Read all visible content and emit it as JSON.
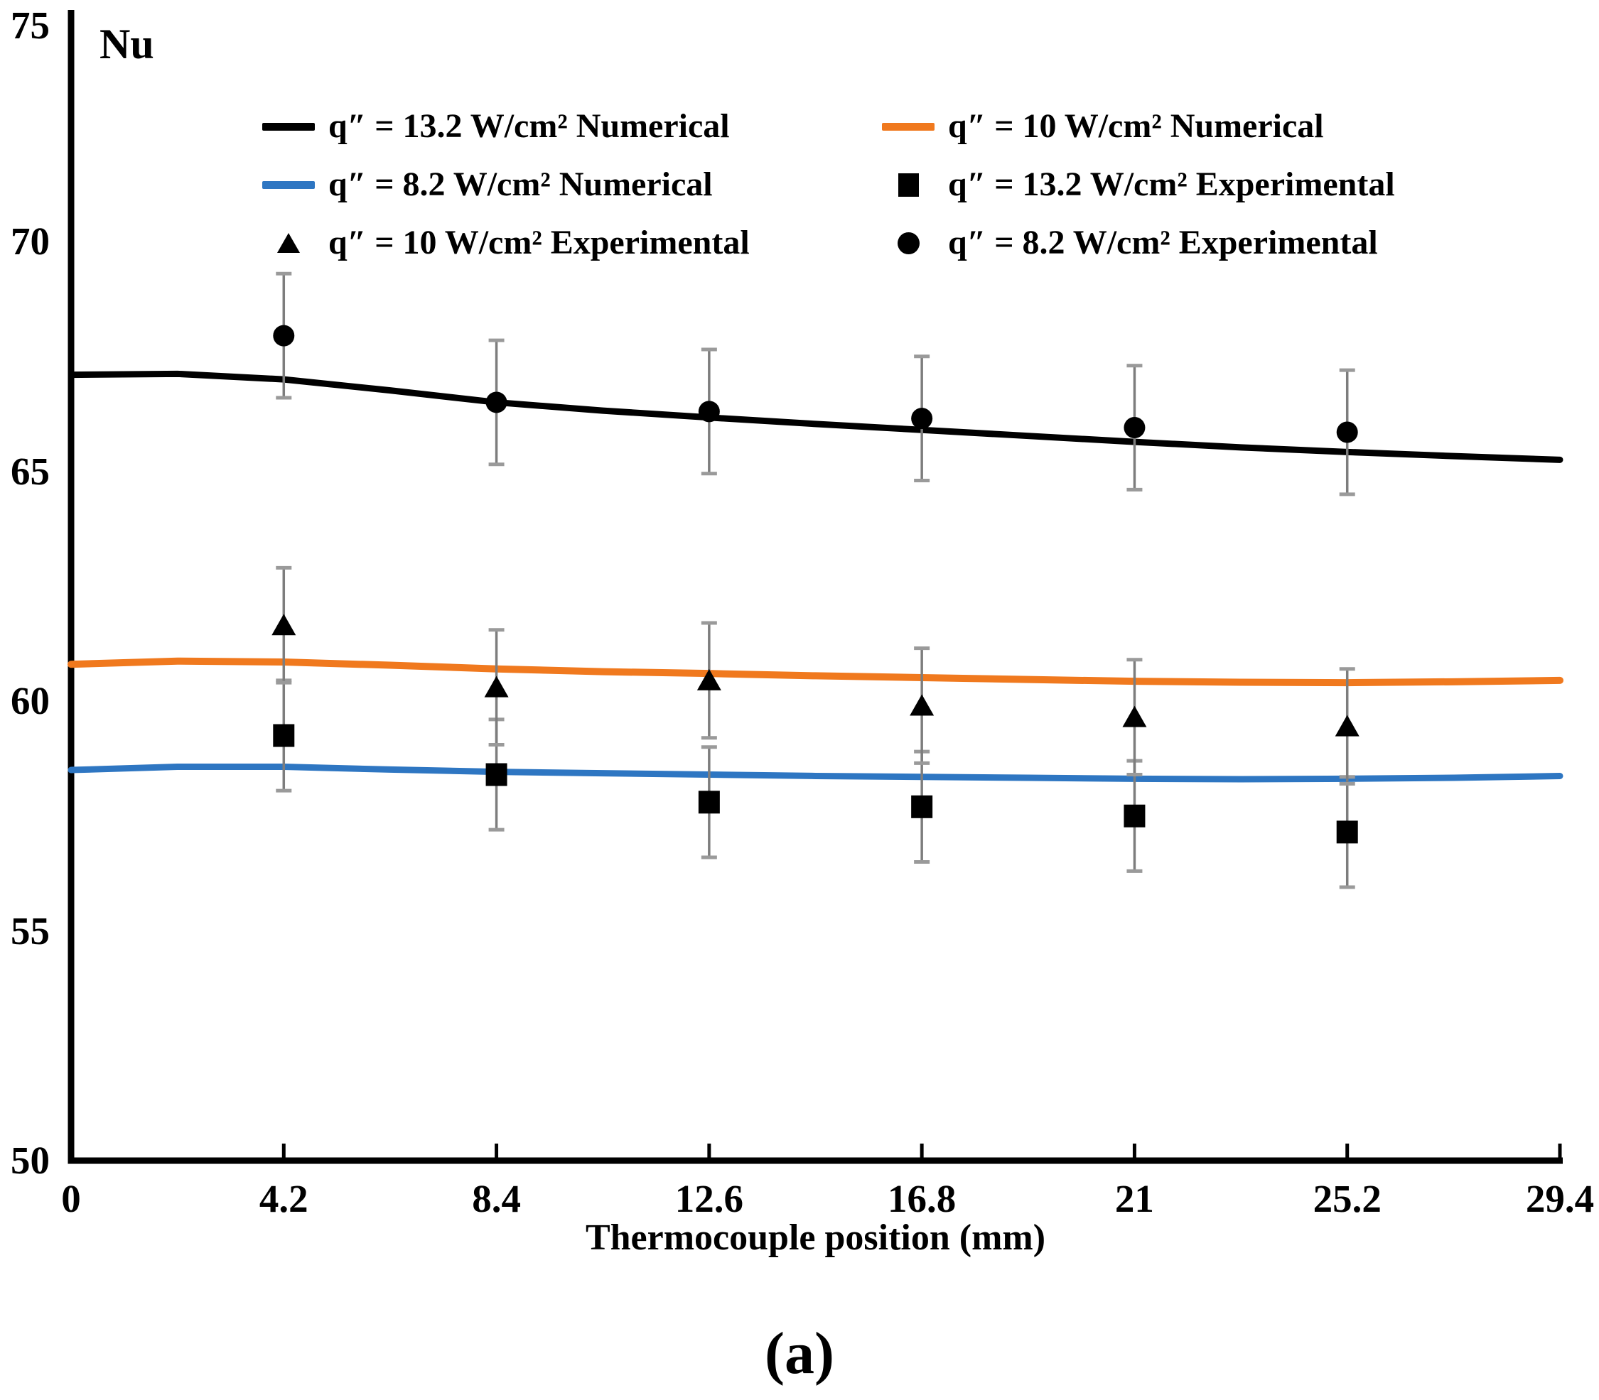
{
  "figure": {
    "y_axis_symbol": "Nu",
    "caption": "(a)"
  },
  "chart_data": {
    "type": "line+scatter",
    "title": "",
    "xlabel": "Thermocouple position (mm)",
    "ylabel": "Nu",
    "xlim": [
      0,
      29.4
    ],
    "ylim": [
      50,
      75
    ],
    "grid": false,
    "legend_position": "top-inside-two-columns",
    "x_tick_labels": [
      "0",
      "4.2",
      "8.4",
      "12.6",
      "16.8",
      "21",
      "25.2",
      "29.4"
    ],
    "x_tick_values": [
      0,
      4.2,
      8.4,
      12.6,
      16.8,
      21,
      25.2,
      29.4
    ],
    "y_tick_labels": [
      "50",
      "55",
      "60",
      "65",
      "70",
      "75"
    ],
    "y_tick_values": [
      50,
      55,
      60,
      65,
      70,
      75
    ],
    "error_bar_color": "#7d7d7d",
    "error_cap_color": "#9a9a9a",
    "series": [
      {
        "name": "q″ = 13.2 W/cm² Numerical",
        "kind": "line",
        "color": "#000000",
        "width": 9,
        "x": [
          0,
          2.1,
          4.2,
          6.3,
          8.4,
          10.5,
          12.6,
          14.7,
          16.8,
          18.9,
          21,
          23.1,
          25.2,
          27.3,
          29.4
        ],
        "y": [
          67.1,
          67.12,
          67.0,
          66.76,
          66.5,
          66.32,
          66.17,
          66.03,
          65.9,
          65.77,
          65.64,
          65.52,
          65.42,
          65.33,
          65.25
        ]
      },
      {
        "name": "q″ = 10 W/cm² Numerical",
        "kind": "line",
        "color": "#F0791E",
        "width": 10,
        "x": [
          0,
          2.1,
          4.2,
          6.3,
          8.4,
          10.5,
          12.6,
          14.7,
          16.8,
          18.9,
          21,
          23.1,
          25.2,
          27.3,
          29.4
        ],
        "y": [
          60.8,
          60.87,
          60.85,
          60.78,
          60.7,
          60.64,
          60.6,
          60.55,
          60.51,
          60.47,
          60.43,
          60.41,
          60.4,
          60.42,
          60.45
        ]
      },
      {
        "name": "q″ = 8.2 W/cm² Numerical",
        "kind": "line",
        "color": "#2E76C2",
        "width": 9,
        "x": [
          0,
          2.1,
          4.2,
          6.3,
          8.4,
          10.5,
          12.6,
          14.7,
          16.8,
          18.9,
          21,
          23.1,
          25.2,
          27.3,
          29.4
        ],
        "y": [
          58.5,
          58.57,
          58.57,
          58.51,
          58.46,
          58.43,
          58.4,
          58.37,
          58.35,
          58.33,
          58.31,
          58.3,
          58.31,
          58.33,
          58.37
        ]
      },
      {
        "name": "q″ = 13.2 W/cm² Experimental",
        "kind": "scatter",
        "marker": "square",
        "color": "#000000",
        "error": 1.2,
        "x": [
          4.2,
          8.4,
          12.6,
          16.8,
          21,
          25.2
        ],
        "y": [
          59.25,
          58.4,
          57.8,
          57.7,
          57.5,
          57.15
        ]
      },
      {
        "name": "q″ = 10 W/cm² Experimental",
        "kind": "scatter",
        "marker": "triangle",
        "color": "#000000",
        "error": 1.25,
        "x": [
          4.2,
          8.4,
          12.6,
          16.8,
          21,
          25.2
        ],
        "y": [
          61.65,
          60.3,
          60.45,
          59.9,
          59.65,
          59.45
        ]
      },
      {
        "name": "q″ = 8.2 W/cm² Experimental",
        "kind": "scatter",
        "marker": "circle",
        "color": "#000000",
        "error": 1.35,
        "x": [
          4.2,
          8.4,
          12.6,
          16.8,
          21,
          25.2
        ],
        "y": [
          67.95,
          66.5,
          66.3,
          66.15,
          65.95,
          65.85
        ]
      }
    ]
  },
  "legend": {
    "items": [
      {
        "label": "q″ = 13.2 W/cm² Numerical",
        "swatch": "line",
        "series": 0
      },
      {
        "label": "q″ = 10 W/cm² Numerical",
        "swatch": "line",
        "series": 1
      },
      {
        "label": "q″ = 8.2 W/cm² Numerical",
        "swatch": "line",
        "series": 2
      },
      {
        "label": "q″ = 13.2 W/cm² Experimental",
        "swatch": "square",
        "series": 3
      },
      {
        "label": "q″ = 10 W/cm² Experimental",
        "swatch": "triangle",
        "series": 4
      },
      {
        "label": "q″ = 8.2 W/cm² Experimental",
        "swatch": "circle",
        "series": 5
      }
    ]
  }
}
